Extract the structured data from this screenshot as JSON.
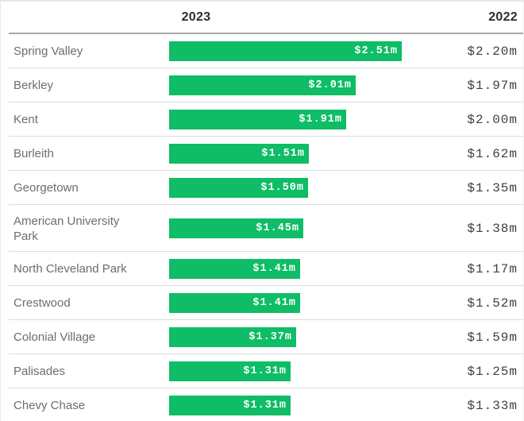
{
  "header": {
    "col_2023": "2023",
    "col_2022": "2022"
  },
  "colors": {
    "bar_green": "#0ebd66",
    "bar_label_text": "#ffffff",
    "value_text": "#3f3f3f",
    "label_text": "#6d6d6d",
    "header_text": "#2d2d2d",
    "row_separator": "#dcdcdc",
    "header_separator": "#a9a9a9"
  },
  "chart_data": {
    "type": "bar",
    "orientation": "horizontal",
    "unit": "million USD",
    "title": "",
    "xlabel": "",
    "ylabel": "",
    "xlim": [
      0,
      2.76
    ],
    "grid": false,
    "legend": "column headers (2023 bars, 2022 text column)",
    "categories": [
      "Spring Valley",
      "Berkley",
      "Kent",
      "Burleith",
      "Georgetown",
      "American University Park",
      "North Cleveland Park",
      "Crestwood",
      "Colonial Village",
      "Palisades",
      "Chevy Chase"
    ],
    "series": [
      {
        "name": "2023",
        "display": "bar",
        "values": [
          2.51,
          2.01,
          1.91,
          1.51,
          1.5,
          1.45,
          1.41,
          1.41,
          1.37,
          1.31,
          1.31
        ],
        "labels": [
          "$2.51m",
          "$2.01m",
          "$1.91m",
          "$1.51m",
          "$1.50m",
          "$1.45m",
          "$1.41m",
          "$1.41m",
          "$1.37m",
          "$1.31m",
          "$1.31m"
        ]
      },
      {
        "name": "2022",
        "display": "text-column",
        "values": [
          2.2,
          1.97,
          2.0,
          1.62,
          1.35,
          1.38,
          1.17,
          1.52,
          1.59,
          1.25,
          1.33
        ],
        "labels": [
          "$2.20m",
          "$1.97m",
          "$2.00m",
          "$1.62m",
          "$1.35m",
          "$1.38m",
          "$1.17m",
          "$1.52m",
          "$1.59m",
          "$1.25m",
          "$1.33m"
        ]
      }
    ]
  }
}
